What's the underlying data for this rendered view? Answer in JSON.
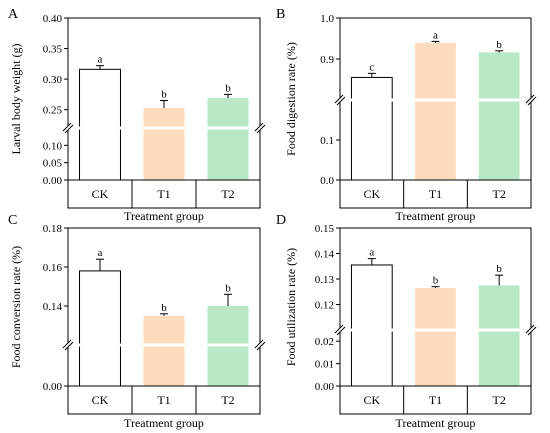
{
  "colors": {
    "CK": "#ffffff",
    "T1": "#fddcbd",
    "T2": "#b8e8c6",
    "axis": "#000000"
  },
  "chart_data": [
    {
      "panel": "A",
      "type": "bar",
      "broken_axis": true,
      "ylabel": "Larval body weight (g)",
      "xlabel": "Treatment group",
      "categories": [
        "CK",
        "T1",
        "T2"
      ],
      "values": [
        0.316,
        0.253,
        0.269
      ],
      "errors": [
        0.006,
        0.012,
        0.006
      ],
      "letters": [
        "a",
        "b",
        "b"
      ],
      "lower_segment": {
        "ylim": [
          0,
          0.15
        ],
        "ticks": [
          "0.00",
          "0.05",
          "0.10"
        ]
      },
      "upper_segment": {
        "ylim": [
          0.22,
          0.4
        ],
        "ticks": [
          "0.25",
          "0.30",
          "0.35",
          "0.40"
        ]
      }
    },
    {
      "panel": "B",
      "type": "bar",
      "broken_axis": true,
      "ylabel": "Food digestion rate (%)",
      "xlabel": "Treatment group",
      "categories": [
        "CK",
        "T1",
        "T2"
      ],
      "values": [
        0.855,
        0.939,
        0.916
      ],
      "errors": [
        0.01,
        0.004,
        0.004
      ],
      "letters": [
        "c",
        "a",
        "b"
      ],
      "lower_segment": {
        "ylim": [
          0,
          0.2
        ],
        "ticks": [
          "0.0",
          "0.1"
        ]
      },
      "upper_segment": {
        "ylim": [
          0.8,
          1.0
        ],
        "ticks": [
          "0.9",
          "1.0"
        ]
      }
    },
    {
      "panel": "C",
      "type": "bar",
      "broken_axis": true,
      "ylabel": "Food conversion rate (%)",
      "xlabel": "Treatment group",
      "categories": [
        "CK",
        "T1",
        "T2"
      ],
      "values": [
        0.158,
        0.135,
        0.14
      ],
      "errors": [
        0.006,
        0.001,
        0.006
      ],
      "letters": [
        "a",
        "b",
        "b"
      ],
      "lower_segment": {
        "ylim": [
          0,
          0.02
        ],
        "ticks": [
          "0.00"
        ]
      },
      "upper_segment": {
        "ylim": [
          0.12,
          0.18
        ],
        "ticks": [
          "0.14",
          "0.16",
          "0.18"
        ]
      }
    },
    {
      "panel": "D",
      "type": "bar",
      "broken_axis": true,
      "ylabel": "Food utilization rate (%)",
      "xlabel": "Treatment group",
      "categories": [
        "CK",
        "T1",
        "T2"
      ],
      "values": [
        0.1355,
        0.1265,
        0.1275
      ],
      "errors": [
        0.0025,
        0.0005,
        0.004
      ],
      "letters": [
        "a",
        "b",
        "b"
      ],
      "lower_segment": {
        "ylim": [
          0,
          0.025
        ],
        "ticks": [
          "0.00",
          "0.01",
          "0.02"
        ]
      },
      "upper_segment": {
        "ylim": [
          0.11,
          0.15
        ],
        "ticks": [
          "0.12",
          "0.13",
          "0.14",
          "0.15"
        ]
      }
    }
  ]
}
